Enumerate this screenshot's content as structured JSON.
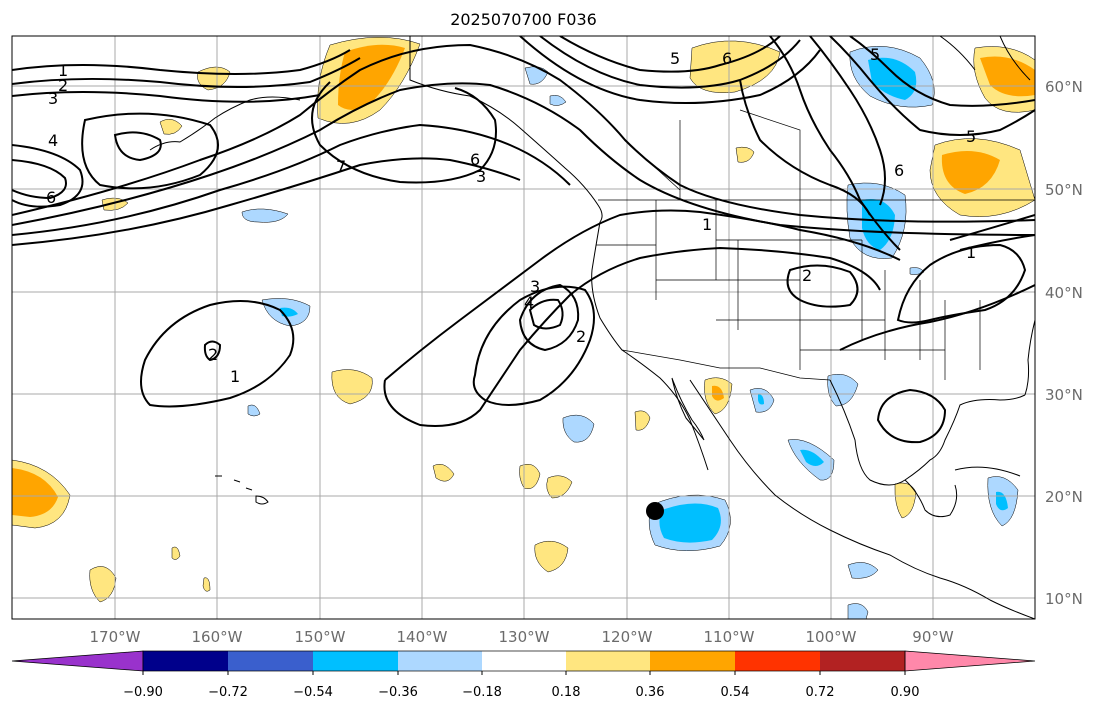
{
  "title": "2025070700 F036",
  "lat_labels": [
    "60°N",
    "50°N",
    "40°N",
    "30°N",
    "20°N",
    "10°N"
  ],
  "lon_labels": [
    "170°W",
    "160°W",
    "150°W",
    "140°W",
    "130°W",
    "120°W",
    "110°W",
    "100°W",
    "90°W"
  ],
  "colorbar": {
    "labels": [
      "−0.90",
      "−0.72",
      "−0.54",
      "−0.36",
      "−0.18",
      "0.18",
      "0.36",
      "0.54",
      "0.72",
      "0.90"
    ],
    "colors": [
      "#9932cc",
      "#00008b",
      "#3a5fcd",
      "#00bfff",
      "#add8ff",
      "#ffffff",
      "#ffe680",
      "#ffa500",
      "#ff3300",
      "#b22222",
      "#ff88aa"
    ]
  },
  "contour_labels": [
    "1",
    "2",
    "3",
    "4",
    "6",
    "1",
    "2",
    "3",
    "4",
    "5",
    "6",
    "7",
    "1",
    "2",
    "1",
    "2",
    "3",
    "5",
    "6",
    "5",
    "6"
  ],
  "colors": {
    "light_blue": "#add8ff",
    "cyan": "#00bfff",
    "yellow": "#ffe680",
    "orange": "#ffa500",
    "marker": "#000000"
  }
}
